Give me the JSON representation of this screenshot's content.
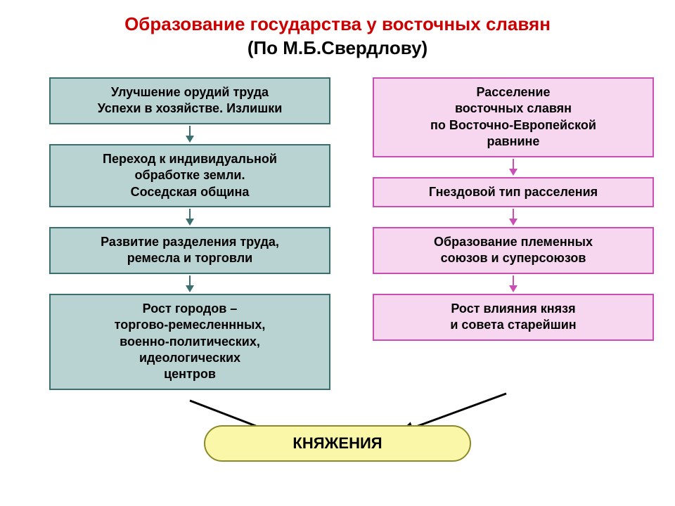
{
  "title": {
    "line1": "Образование государства у восточных славян",
    "line2": "(По М.Б.Свердлову)",
    "color": "#cc0000",
    "fontsize": 26,
    "weight": "bold"
  },
  "diagram": {
    "type": "flowchart",
    "layout": "two-columns-converge",
    "background_color": "#ffffff",
    "text_color": "#000000",
    "box_fontsize": 18,
    "box_fontweight": "bold",
    "box_border_width": 2,
    "arrow_shaft_width": 2
  },
  "left": {
    "fill_color": "#b9d2d2",
    "border_color": "#3a6f6f",
    "arrow_color": "#3a6f6f",
    "boxes": [
      {
        "text": "Улучшение орудий труда\nУспехи в хозяйстве. Излишки"
      },
      {
        "text": "Переход к индивидуальной\nобработке земли.\nСоседская община"
      },
      {
        "text": "Развитие разделения труда,\nремесла и торговли"
      },
      {
        "text": "Рост городов –\nторгово-ремесленнных,\nвоенно-политических,\nидеологических\nцентров"
      }
    ]
  },
  "right": {
    "fill_color": "#f7d6f0",
    "border_color": "#c94fb5",
    "arrow_color": "#c94fb5",
    "boxes": [
      {
        "text": "Расселение\nвосточных  славян\nпо Восточно-Европейской\nравнине"
      },
      {
        "text": "Гнездовой тип расселения"
      },
      {
        "text": "Образование племенных\nсоюзов и суперсоюзов"
      },
      {
        "text": "Рост влияния князя\nи совета старейшин"
      }
    ]
  },
  "result": {
    "text": "КНЯЖЕНИЯ",
    "fill_color": "#faf7a8",
    "border_color": "#8a8a2a",
    "fontsize": 22
  },
  "converge_arrows": {
    "color": "#000000",
    "stroke_width": 3
  }
}
